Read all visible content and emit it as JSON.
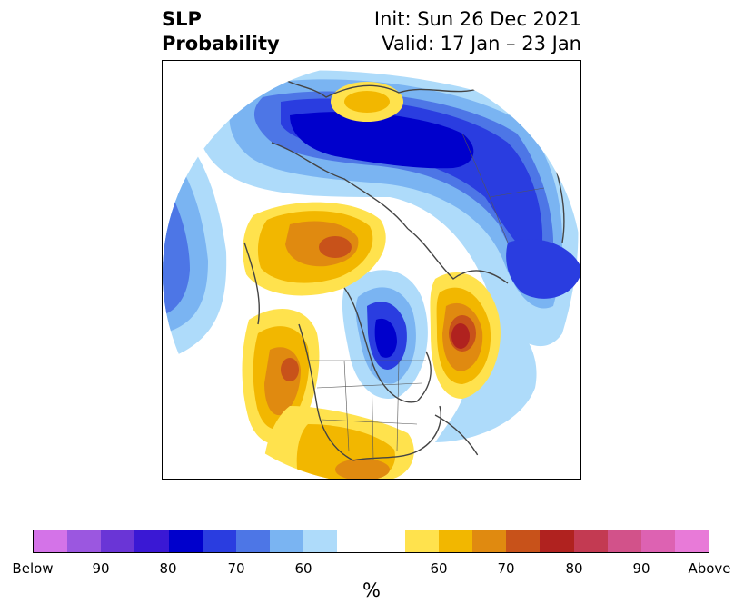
{
  "title": {
    "left_line1": "SLP",
    "left_line2": "Probability",
    "right_line1": "Init: Sun 26 Dec 2021",
    "right_line2": "Valid: 17 Jan – 23 Jan"
  },
  "colorbar": {
    "unit": "%",
    "colors": [
      "#d473e8",
      "#9b57e0",
      "#6a35d6",
      "#3a18d4",
      "#0000cc",
      "#2a3de0",
      "#4d76e6",
      "#7ab4f2",
      "#aedbfa",
      "#ffffff",
      "#ffffff",
      "#ffe24d",
      "#f2b700",
      "#e08a10",
      "#c8521a",
      "#b0221f",
      "#c33a52",
      "#d2528a",
      "#dd62b2",
      "#e87ad8"
    ],
    "tick_labels": [
      "Below",
      "90",
      "80",
      "70",
      "60",
      "60",
      "70",
      "80",
      "90",
      "Above"
    ]
  },
  "map": {
    "projection": "north-polar-stereographic",
    "features": [
      {
        "id": "below-north-atlantic-arctic",
        "sign": "below",
        "peak_probability": 80
      },
      {
        "id": "below-north-pacific-aleutian",
        "sign": "below",
        "peak_probability": 80
      },
      {
        "id": "below-hudson-bay",
        "sign": "below",
        "peak_probability": 80
      },
      {
        "id": "below-central-pacific",
        "sign": "below",
        "peak_probability": 70
      },
      {
        "id": "above-siberia",
        "sign": "above",
        "peak_probability": 70
      },
      {
        "id": "above-greenland-north-atlantic",
        "sign": "above",
        "peak_probability": 80
      },
      {
        "id": "above-western-north-america",
        "sign": "above",
        "peak_probability": 70
      },
      {
        "id": "above-southern-us-gulf",
        "sign": "above",
        "peak_probability": 70
      },
      {
        "id": "above-arctic-north-pole",
        "sign": "above",
        "peak_probability": 65
      }
    ]
  }
}
